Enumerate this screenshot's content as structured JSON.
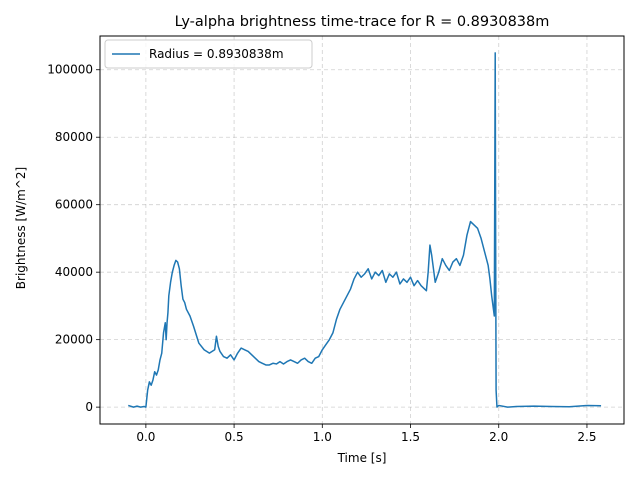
{
  "chart_data": {
    "type": "line",
    "title": "Ly-alpha brightness time-trace for R = 0.8930838m",
    "xlabel": "Time [s]",
    "ylabel": "Brightness [W/m^2]",
    "xlim": [
      -0.26,
      2.71
    ],
    "ylim": [
      -5000,
      110000
    ],
    "xticks": [
      0.0,
      0.5,
      1.0,
      1.5,
      2.0,
      2.5
    ],
    "xtick_labels": [
      "0.0",
      "0.5",
      "1.0",
      "1.5",
      "2.0",
      "2.5"
    ],
    "yticks": [
      0,
      20000,
      40000,
      60000,
      80000,
      100000
    ],
    "ytick_labels": [
      "0",
      "20000",
      "40000",
      "60000",
      "80000",
      "100000"
    ],
    "grid": true,
    "legend_position": "top-left",
    "series": [
      {
        "name": "Radius = 0.8930838m",
        "color": "#1f77b4",
        "x": [
          -0.1,
          -0.07,
          -0.05,
          -0.03,
          -0.01,
          0.0,
          0.01,
          0.02,
          0.03,
          0.04,
          0.05,
          0.06,
          0.07,
          0.08,
          0.09,
          0.1,
          0.11,
          0.115,
          0.12,
          0.125,
          0.13,
          0.14,
          0.15,
          0.16,
          0.17,
          0.18,
          0.19,
          0.2,
          0.21,
          0.22,
          0.23,
          0.25,
          0.27,
          0.3,
          0.33,
          0.36,
          0.39,
          0.4,
          0.41,
          0.42,
          0.44,
          0.46,
          0.48,
          0.5,
          0.52,
          0.54,
          0.56,
          0.58,
          0.6,
          0.62,
          0.64,
          0.66,
          0.68,
          0.7,
          0.72,
          0.74,
          0.76,
          0.78,
          0.8,
          0.82,
          0.84,
          0.86,
          0.88,
          0.9,
          0.92,
          0.94,
          0.96,
          0.98,
          1.0,
          1.02,
          1.04,
          1.06,
          1.08,
          1.1,
          1.12,
          1.14,
          1.16,
          1.18,
          1.2,
          1.22,
          1.24,
          1.26,
          1.28,
          1.3,
          1.32,
          1.34,
          1.36,
          1.38,
          1.4,
          1.42,
          1.44,
          1.46,
          1.48,
          1.5,
          1.52,
          1.54,
          1.56,
          1.58,
          1.59,
          1.6,
          1.61,
          1.62,
          1.64,
          1.66,
          1.68,
          1.7,
          1.72,
          1.74,
          1.76,
          1.78,
          1.8,
          1.82,
          1.84,
          1.86,
          1.88,
          1.9,
          1.92,
          1.94,
          1.95,
          1.96,
          1.97,
          1.975,
          1.98,
          1.982,
          1.985,
          1.99,
          2.0,
          2.05,
          2.1,
          2.2,
          2.3,
          2.4,
          2.5,
          2.58
        ],
        "y": [
          500,
          0,
          300,
          0,
          200,
          0,
          5000,
          7500,
          6500,
          8000,
          10500,
          9500,
          11000,
          14000,
          16000,
          22000,
          25000,
          20000,
          25000,
          28000,
          33000,
          37000,
          40000,
          42000,
          43500,
          43000,
          41000,
          36000,
          32000,
          31000,
          29000,
          27000,
          24000,
          19000,
          17000,
          16000,
          17000,
          21000,
          18000,
          16500,
          15000,
          14500,
          15500,
          14000,
          16000,
          17500,
          17000,
          16500,
          15500,
          14500,
          13500,
          13000,
          12500,
          12500,
          13000,
          12800,
          13500,
          12800,
          13500,
          14000,
          13500,
          13000,
          14000,
          14500,
          13500,
          13000,
          14500,
          15000,
          17000,
          18500,
          20000,
          22000,
          26000,
          29000,
          31000,
          33000,
          35000,
          38000,
          40000,
          38500,
          39500,
          41000,
          38000,
          40000,
          39000,
          40500,
          37000,
          39500,
          38500,
          40000,
          36500,
          38000,
          37000,
          38500,
          36000,
          37500,
          36000,
          35000,
          34500,
          40000,
          48000,
          45000,
          37000,
          40000,
          44000,
          42000,
          40500,
          43000,
          44000,
          42000,
          45000,
          51000,
          55000,
          54000,
          53000,
          50000,
          46000,
          42000,
          38000,
          33000,
          29000,
          27000,
          105000,
          60000,
          5000,
          0,
          500,
          0,
          200,
          300,
          200,
          100,
          500,
          400
        ]
      }
    ]
  }
}
